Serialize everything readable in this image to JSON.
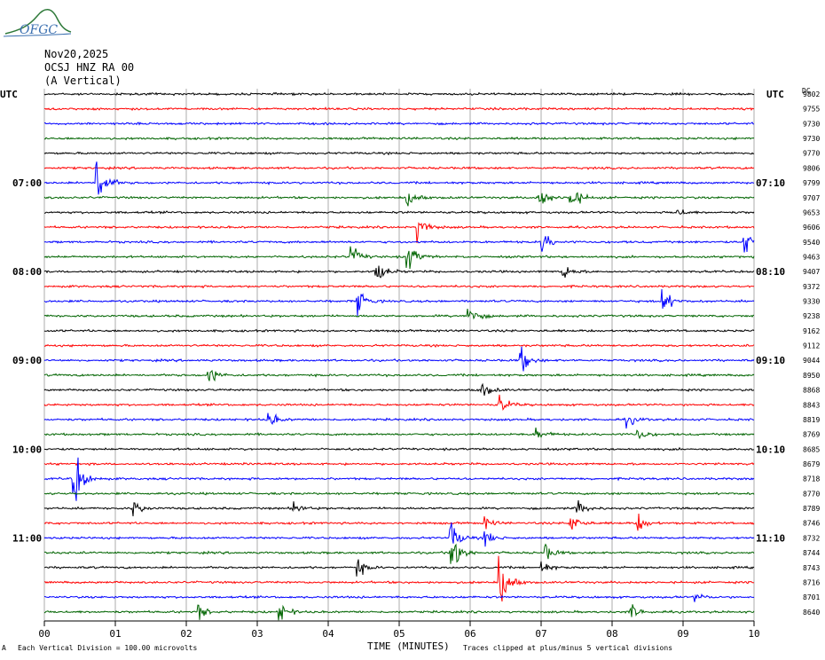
{
  "logo": {
    "text": "OFGC",
    "icon": "ovsicori-logo-icon"
  },
  "header": {
    "date": "Nov20,2025",
    "station": "OCSJ HNZ RA 00",
    "component": "(A Vertical)"
  },
  "left_axis_label": "UTC",
  "right_axis_label": "UTC",
  "dc_label": "DC",
  "footer": {
    "scale_note": "Each Vertical Division = 100.00 microvolts",
    "clip_note": "Traces clipped at plus/minus 5 vertical divisions",
    "corner_mark": "A"
  },
  "chart_data": {
    "type": "line",
    "title": "",
    "xlabel": "TIME (MINUTES)",
    "ylabel": "",
    "x_ticks": [
      "00",
      "01",
      "02",
      "03",
      "04",
      "05",
      "06",
      "07",
      "08",
      "09",
      "10"
    ],
    "xlim": [
      0,
      10
    ],
    "grid": true,
    "trace_colors": [
      "#000000",
      "#ff0000",
      "#0000ff",
      "#006400"
    ],
    "left_time_labels": [
      {
        "row": 6,
        "label": "07:00"
      },
      {
        "row": 12,
        "label": "08:00"
      },
      {
        "row": 18,
        "label": "09:00"
      },
      {
        "row": 24,
        "label": "10:00"
      },
      {
        "row": 30,
        "label": "11:00"
      }
    ],
    "right_time_labels": [
      {
        "row": 6,
        "label": "07:10"
      },
      {
        "row": 12,
        "label": "08:10"
      },
      {
        "row": 18,
        "label": "09:10"
      },
      {
        "row": 24,
        "label": "10:10"
      },
      {
        "row": 30,
        "label": "11:10"
      }
    ],
    "dc_offsets": [
      9802,
      9755,
      9730,
      9730,
      9770,
      9806,
      9799,
      9707,
      9653,
      9606,
      9540,
      9463,
      9407,
      9372,
      9330,
      9238,
      9162,
      9112,
      9044,
      8950,
      8868,
      8843,
      8819,
      8769,
      8685,
      8679,
      8718,
      8770,
      8789,
      8746,
      8732,
      8744,
      8743,
      8716,
      8701,
      8640
    ],
    "events": [
      {
        "row": 6,
        "x_min": 0.72,
        "amp": 5
      },
      {
        "row": 7,
        "x_min": 5.1,
        "amp": 1.6
      },
      {
        "row": 7,
        "x_min": 6.95,
        "amp": 2
      },
      {
        "row": 7,
        "x_min": 7.4,
        "amp": 2.5
      },
      {
        "row": 8,
        "x_min": 8.9,
        "amp": 0.8
      },
      {
        "row": 9,
        "x_min": 5.25,
        "amp": 2.2
      },
      {
        "row": 10,
        "x_min": 7.0,
        "amp": 1.6
      },
      {
        "row": 10,
        "x_min": 9.85,
        "amp": 2.5
      },
      {
        "row": 11,
        "x_min": 4.3,
        "amp": 1.8
      },
      {
        "row": 11,
        "x_min": 5.1,
        "amp": 2.5
      },
      {
        "row": 12,
        "x_min": 4.65,
        "amp": 2.5
      },
      {
        "row": 12,
        "x_min": 7.3,
        "amp": 1.2
      },
      {
        "row": 14,
        "x_min": 4.4,
        "amp": 2
      },
      {
        "row": 14,
        "x_min": 8.7,
        "amp": 2
      },
      {
        "row": 15,
        "x_min": 5.95,
        "amp": 2.2
      },
      {
        "row": 18,
        "x_min": 6.7,
        "amp": 2
      },
      {
        "row": 19,
        "x_min": 2.3,
        "amp": 1.6
      },
      {
        "row": 20,
        "x_min": 6.15,
        "amp": 1.4
      },
      {
        "row": 21,
        "x_min": 6.4,
        "amp": 1.5
      },
      {
        "row": 22,
        "x_min": 3.15,
        "amp": 1.2
      },
      {
        "row": 22,
        "x_min": 8.2,
        "amp": 1.0
      },
      {
        "row": 23,
        "x_min": 6.9,
        "amp": 1.4
      },
      {
        "row": 23,
        "x_min": 8.35,
        "amp": 1.0
      },
      {
        "row": 26,
        "x_min": 0.4,
        "amp": 5
      },
      {
        "row": 28,
        "x_min": 1.25,
        "amp": 1.2
      },
      {
        "row": 28,
        "x_min": 3.5,
        "amp": 1.0
      },
      {
        "row": 28,
        "x_min": 7.5,
        "amp": 1.3
      },
      {
        "row": 29,
        "x_min": 6.2,
        "amp": 0.8
      },
      {
        "row": 29,
        "x_min": 7.4,
        "amp": 1.8
      },
      {
        "row": 29,
        "x_min": 8.35,
        "amp": 1.3
      },
      {
        "row": 30,
        "x_min": 5.7,
        "amp": 3
      },
      {
        "row": 30,
        "x_min": 6.2,
        "amp": 1.3
      },
      {
        "row": 31,
        "x_min": 5.7,
        "amp": 5
      },
      {
        "row": 31,
        "x_min": 7.05,
        "amp": 1.2
      },
      {
        "row": 32,
        "x_min": 4.4,
        "amp": 1.3
      },
      {
        "row": 32,
        "x_min": 7.0,
        "amp": 0.8
      },
      {
        "row": 33,
        "x_min": 6.4,
        "amp": 5
      },
      {
        "row": 34,
        "x_min": 9.15,
        "amp": 0.6
      },
      {
        "row": 35,
        "x_min": 2.15,
        "amp": 1.2
      },
      {
        "row": 35,
        "x_min": 3.3,
        "amp": 1.6
      },
      {
        "row": 35,
        "x_min": 8.25,
        "amp": 1.3
      }
    ]
  }
}
